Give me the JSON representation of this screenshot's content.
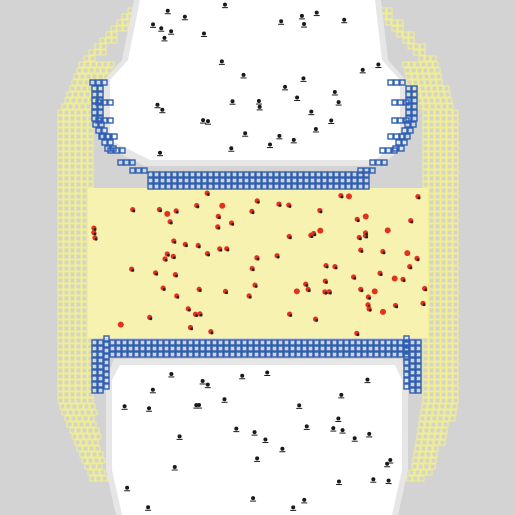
{
  "simulation": {
    "background_color": "#d3d3d3",
    "chamber_fill_color": "#ffffff",
    "chamber_shadow_color": "#e6e6e6",
    "yellow_grid_color": "#f3f08a",
    "blue_grid_color": "#2f5fb4",
    "channel_fill_color": "#f7f2b0",
    "red_particle_color": "#e0321e",
    "dark_particle_color": "#1a1a1a",
    "red_particle_count": 90,
    "dark_particle_count": 75
  }
}
